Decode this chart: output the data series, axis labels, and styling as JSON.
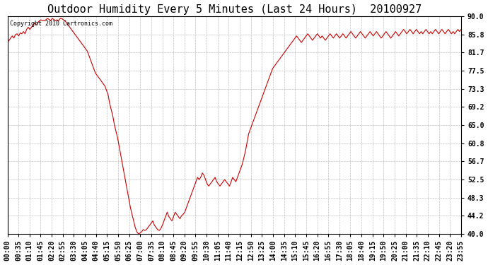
{
  "title": "Outdoor Humidity Every 5 Minutes (Last 24 Hours)  20100927",
  "copyright_text": "Copyright 2010 Cartronics.com",
  "line_color": "#cc0000",
  "bg_color": "#ffffff",
  "grid_color": "#c0c0c0",
  "ylim": [
    40.0,
    90.0
  ],
  "yticks": [
    40.0,
    44.2,
    48.3,
    52.5,
    56.7,
    60.8,
    65.0,
    69.2,
    73.3,
    77.5,
    81.7,
    85.8,
    90.0
  ],
  "title_fontsize": 11,
  "tick_fontsize": 7,
  "figwidth": 6.9,
  "figheight": 3.75,
  "humidity_values": [
    84.0,
    84.5,
    85.0,
    85.5,
    85.0,
    85.8,
    86.0,
    85.5,
    86.2,
    86.0,
    86.5,
    86.0,
    87.0,
    87.5,
    87.0,
    87.5,
    88.0,
    88.5,
    88.0,
    88.5,
    89.0,
    89.2,
    89.0,
    89.0,
    89.2,
    89.5,
    89.3,
    89.0,
    89.5,
    89.3,
    89.0,
    89.2,
    89.0,
    89.5,
    89.5,
    89.2,
    89.0,
    88.5,
    88.0,
    87.5,
    87.0,
    86.5,
    86.0,
    85.5,
    85.0,
    84.5,
    84.0,
    83.5,
    83.0,
    82.5,
    82.0,
    81.0,
    80.0,
    79.0,
    78.0,
    77.0,
    76.5,
    76.0,
    75.5,
    75.0,
    74.5,
    74.0,
    73.0,
    72.0,
    70.0,
    68.5,
    67.0,
    65.0,
    63.5,
    62.0,
    60.0,
    58.0,
    56.0,
    54.0,
    52.0,
    50.0,
    48.0,
    46.0,
    44.5,
    43.0,
    41.5,
    40.5,
    40.0,
    40.2,
    40.5,
    41.0,
    40.8,
    41.0,
    41.5,
    42.0,
    42.5,
    43.0,
    42.0,
    41.5,
    41.0,
    40.8,
    41.2,
    42.0,
    43.0,
    44.0,
    45.0,
    44.0,
    43.5,
    43.0,
    44.0,
    45.0,
    44.5,
    44.0,
    43.5,
    44.2,
    44.5,
    45.0,
    46.0,
    47.0,
    48.0,
    49.0,
    50.0,
    51.0,
    52.0,
    53.0,
    52.5,
    53.0,
    54.0,
    53.5,
    52.5,
    51.5,
    51.0,
    51.5,
    52.0,
    52.5,
    53.0,
    52.0,
    51.5,
    51.0,
    51.5,
    52.0,
    52.5,
    52.0,
    51.5,
    51.0,
    52.0,
    53.0,
    52.5,
    52.0,
    53.0,
    54.0,
    55.0,
    56.0,
    57.5,
    59.0,
    61.0,
    63.0,
    64.0,
    65.0,
    66.0,
    67.0,
    68.0,
    69.0,
    70.0,
    71.0,
    72.0,
    73.0,
    74.0,
    75.0,
    76.0,
    77.0,
    78.0,
    78.5,
    79.0,
    79.5,
    80.0,
    80.5,
    81.0,
    81.5,
    82.0,
    82.5,
    83.0,
    83.5,
    84.0,
    84.5,
    85.0,
    85.5,
    85.0,
    84.5,
    84.0,
    84.5,
    85.0,
    85.5,
    86.0,
    85.5,
    85.0,
    84.5,
    85.0,
    85.5,
    86.0,
    85.5,
    85.0,
    85.5,
    85.0,
    84.5,
    85.0,
    85.5,
    86.0,
    85.5,
    85.0,
    85.5,
    86.0,
    85.5,
    85.0,
    85.5,
    86.0,
    85.5,
    85.0,
    85.5,
    86.0,
    86.5,
    86.0,
    85.5,
    85.0,
    85.5,
    86.0,
    86.5,
    86.0,
    85.5,
    85.0,
    85.5,
    86.0,
    86.5,
    86.0,
    85.5,
    86.0,
    86.5,
    86.0,
    85.5,
    85.0,
    85.5,
    86.0,
    86.5,
    86.0,
    85.5,
    85.0,
    85.5,
    86.0,
    86.5,
    86.0,
    85.5,
    86.0,
    86.5,
    87.0,
    86.5,
    86.0,
    86.5,
    87.0,
    86.5,
    86.0,
    86.5,
    87.0,
    86.5,
    86.0,
    86.5,
    86.0,
    86.5,
    87.0,
    86.5,
    86.0,
    86.5,
    86.0,
    86.5,
    87.0,
    86.5,
    86.0,
    86.5,
    87.0,
    86.5,
    86.0,
    86.5,
    87.0,
    86.5,
    86.0,
    86.5,
    86.0,
    86.5,
    87.0,
    86.5,
    87.0
  ],
  "xtick_labels": [
    "00:00",
    "00:35",
    "01:10",
    "01:45",
    "02:20",
    "02:55",
    "03:30",
    "04:05",
    "04:40",
    "05:15",
    "05:50",
    "06:25",
    "07:00",
    "07:35",
    "08:10",
    "08:45",
    "09:20",
    "09:55",
    "10:30",
    "11:05",
    "11:40",
    "12:15",
    "12:50",
    "13:25",
    "14:00",
    "14:35",
    "15:10",
    "15:45",
    "16:20",
    "16:55",
    "17:30",
    "18:05",
    "18:40",
    "19:15",
    "19:50",
    "20:25",
    "21:00",
    "21:35",
    "22:10",
    "22:45",
    "23:20",
    "23:55"
  ]
}
